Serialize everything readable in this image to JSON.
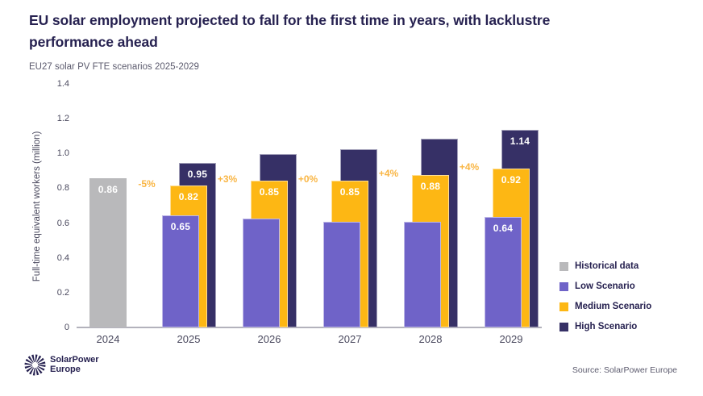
{
  "page": {
    "title_lines": [
      "EU solar employment projected to fall for the first time in years, with lacklustre",
      "performance ahead"
    ],
    "source": "Source: SolarPower Europe",
    "logo": {
      "icon": "sunburst-icon",
      "line1": "SolarPower",
      "line2": "Europe"
    },
    "colors": {
      "title": "#262150",
      "subtitle": "#5c5b6e",
      "axis_text": "#4a495e",
      "axis_line": "#b3b2bc",
      "annotation": "#f9b645"
    }
  },
  "chart_data": {
    "type": "bar",
    "title": "EU solar employment projected to fall for the first time in years, with lacklustre performance ahead",
    "subtitle": "EU27 solar PV FTE scenarios 2025-2029",
    "ylabel": "Full-time equivalent workers (million)",
    "ylim": [
      0,
      1.4
    ],
    "yticks": [
      "1.4",
      "1.2",
      "1.0",
      "0.8",
      "0.6",
      "0.4",
      "0.2",
      "0"
    ],
    "categories": [
      "2024",
      "2025",
      "2026",
      "2027",
      "2028",
      "2029"
    ],
    "series": [
      {
        "name": "Historical data",
        "color": "#b9b9bb",
        "values": [
          0.86,
          null,
          null,
          null,
          null,
          null
        ],
        "labels": [
          "0.86",
          null,
          null,
          null,
          null,
          null
        ]
      },
      {
        "name": "Low Scenario",
        "color": "#6f63c8",
        "values": [
          null,
          0.65,
          0.63,
          0.61,
          0.61,
          0.64
        ],
        "labels": [
          null,
          "0.65",
          null,
          null,
          null,
          "0.64"
        ]
      },
      {
        "name": "Medium Scenario",
        "color": "#fdb714",
        "values": [
          null,
          0.82,
          0.85,
          0.85,
          0.88,
          0.92
        ],
        "labels": [
          null,
          "0.82",
          "0.85",
          "0.85",
          "0.88",
          "0.92"
        ]
      },
      {
        "name": "High Scenario",
        "color": "#363066",
        "values": [
          null,
          0.95,
          1.0,
          1.03,
          1.09,
          1.14
        ],
        "labels": [
          null,
          "0.95",
          null,
          null,
          null,
          "1.14"
        ]
      }
    ],
    "annotations": [
      {
        "text": "-5%",
        "category": "2025"
      },
      {
        "text": "+3%",
        "category": "2026"
      },
      {
        "text": "+0%",
        "category": "2027"
      },
      {
        "text": "+4%",
        "category": "2028"
      },
      {
        "text": "+4%",
        "category": "2029"
      }
    ],
    "legend_position": "right",
    "grid": false
  }
}
